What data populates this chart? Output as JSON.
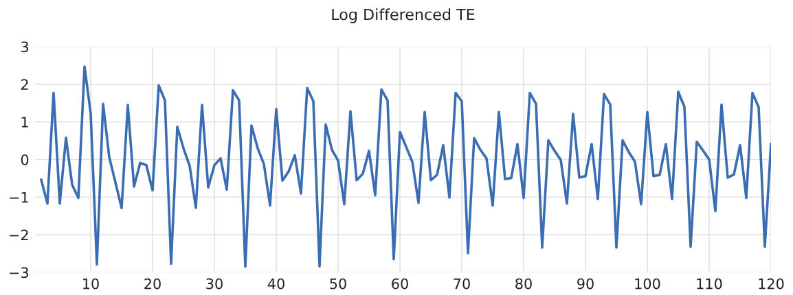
{
  "chart_data": {
    "type": "line",
    "title": "Log Differenced TE",
    "x": [
      2,
      3,
      4,
      5,
      6,
      7,
      8,
      9,
      10,
      11,
      12,
      13,
      14,
      15,
      16,
      17,
      18,
      19,
      20,
      21,
      22,
      23,
      24,
      25,
      26,
      27,
      28,
      29,
      30,
      31,
      32,
      33,
      34,
      35,
      36,
      37,
      38,
      39,
      40,
      41,
      42,
      43,
      44,
      45,
      46,
      47,
      48,
      49,
      50,
      51,
      52,
      53,
      54,
      55,
      56,
      57,
      58,
      59,
      60,
      61,
      62,
      63,
      64,
      65,
      66,
      67,
      68,
      69,
      70,
      71,
      72,
      73,
      74,
      75,
      76,
      77,
      78,
      79,
      80,
      81,
      82,
      83,
      84,
      85,
      86,
      87,
      88,
      89,
      90,
      91,
      92,
      93,
      94,
      95,
      96,
      97,
      98,
      99,
      100,
      101,
      102,
      103,
      104,
      105,
      106,
      107,
      108,
      109,
      110,
      111,
      112,
      113,
      114,
      115,
      116,
      117,
      118,
      119,
      120
    ],
    "series": [
      {
        "color": "#3b6db3",
        "values": [
          -0.54,
          -1.17,
          1.77,
          -1.17,
          0.58,
          -0.67,
          -1.02,
          2.47,
          1.22,
          -2.79,
          1.48,
          0.06,
          -0.61,
          -1.29,
          1.45,
          -0.72,
          -0.09,
          -0.15,
          -0.82,
          1.97,
          1.57,
          -2.77,
          0.87,
          0.3,
          -0.17,
          -1.28,
          1.45,
          -0.74,
          -0.15,
          0.03,
          -0.8,
          1.84,
          1.57,
          -2.85,
          0.9,
          0.3,
          -0.12,
          -1.22,
          1.34,
          -0.56,
          -0.32,
          0.11,
          -0.9,
          1.9,
          1.55,
          -2.84,
          0.93,
          0.26,
          -0.03,
          -1.19,
          1.28,
          -0.55,
          -0.38,
          0.23,
          -0.95,
          1.86,
          1.57,
          -2.65,
          0.73,
          0.34,
          -0.06,
          -1.15,
          1.26,
          -0.55,
          -0.41,
          0.38,
          -1.01,
          1.77,
          1.55,
          -2.49,
          0.57,
          0.26,
          0.03,
          -1.22,
          1.26,
          -0.52,
          -0.49,
          0.41,
          -1.02,
          1.77,
          1.48,
          -2.34,
          0.51,
          0.23,
          -0.01,
          -1.17,
          1.21,
          -0.48,
          -0.44,
          0.41,
          -1.05,
          1.74,
          1.46,
          -2.34,
          0.51,
          0.2,
          -0.06,
          -1.19,
          1.26,
          -0.44,
          -0.41,
          0.41,
          -1.05,
          1.8,
          1.4,
          -2.32,
          0.47,
          0.24,
          0.0,
          -1.37,
          1.46,
          -0.48,
          -0.4,
          0.38,
          -1.02,
          1.77,
          1.39,
          -2.32,
          0.41
        ]
      }
    ],
    "xlim": [
      1,
      120
    ],
    "xticks": [
      10,
      20,
      30,
      40,
      50,
      60,
      70,
      80,
      90,
      100,
      110,
      120
    ],
    "ylim": [
      -3,
      3
    ],
    "yticks": [
      {
        "value": -3,
        "label": "−3"
      },
      {
        "value": -2,
        "label": "−2"
      },
      {
        "value": -1,
        "label": "−1"
      },
      0,
      1,
      2,
      3
    ],
    "grid": true,
    "marker": "none",
    "line_style": "solid"
  }
}
